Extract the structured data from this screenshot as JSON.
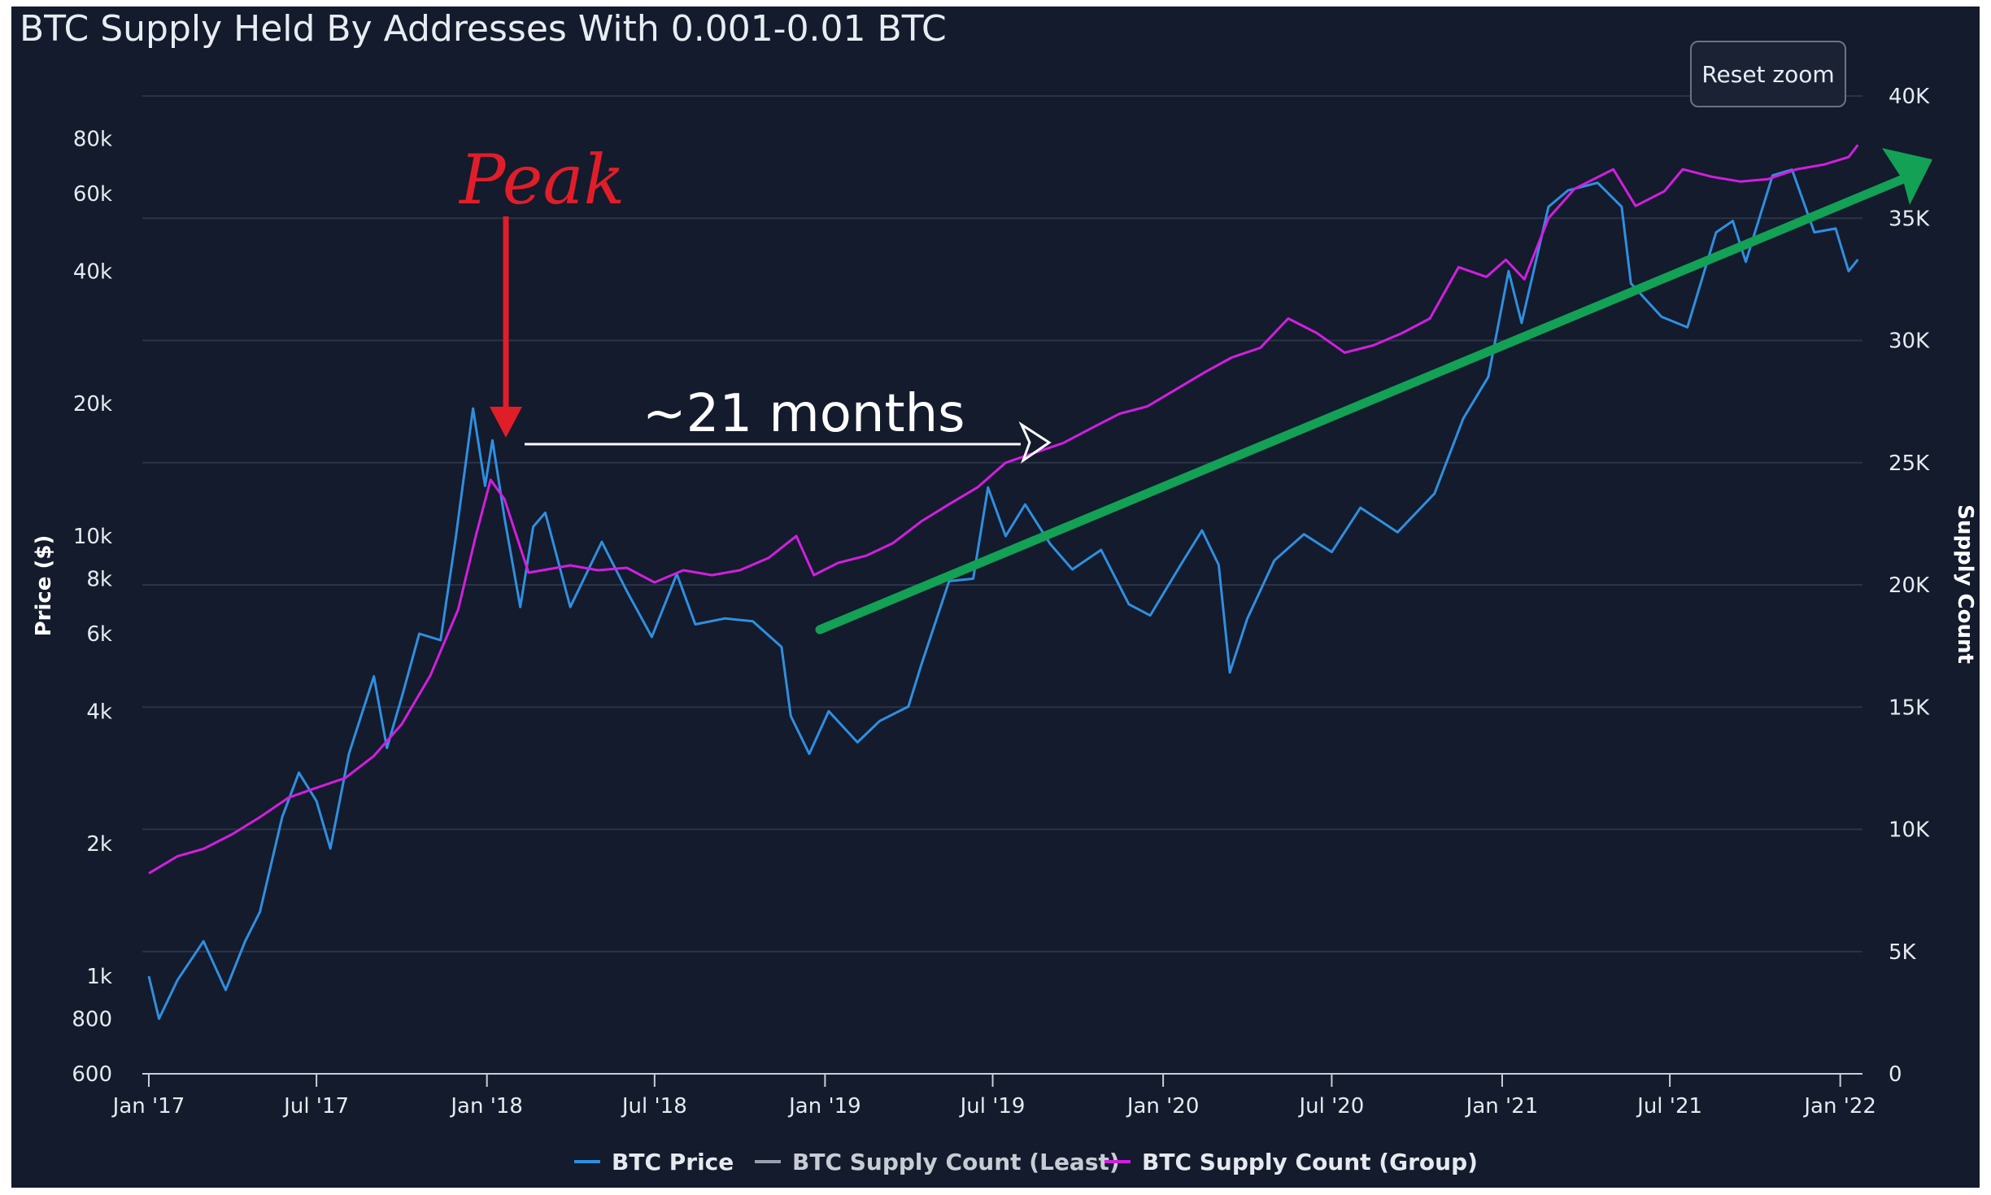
{
  "chart_data": {
    "type": "line",
    "title": "BTC Supply Held By Addresses With 0.001-0.01 BTC",
    "reset_zoom_label": "Reset zoom",
    "x_axis": {
      "type": "datetime",
      "range": [
        "2016-12-25",
        "2022-01-25"
      ],
      "tick_labels": [
        "Jan '17",
        "Jul '17",
        "Jan '18",
        "Jul '18",
        "Jan '19",
        "Jul '19",
        "Jan '20",
        "Jul '20",
        "Jan '21",
        "Jul '21",
        "Jan '22"
      ]
    },
    "y_left": {
      "label": "Price ($)",
      "scale": "log",
      "range": [
        600,
        100000
      ],
      "tick_labels": [
        "600",
        "800",
        "1k",
        "2k",
        "4k",
        "6k",
        "8k",
        "10k",
        "20k",
        "40k",
        "60k",
        "80k"
      ]
    },
    "y_right": {
      "label": "Supply Count",
      "scale": "linear",
      "range": [
        0,
        40000
      ],
      "tick_labels": [
        "0",
        "5K",
        "10K",
        "15K",
        "20K",
        "25K",
        "30K",
        "35K",
        "40K"
      ]
    },
    "grid": true,
    "legend": {
      "position": "bottom-center",
      "items": [
        {
          "name": "BTC Price",
          "color": "#2f8fe0",
          "active": true
        },
        {
          "name": "BTC Supply Count (Least)",
          "color": "#9aa0ab",
          "active": false
        },
        {
          "name": "BTC Supply Count (Group)",
          "color": "#d21ee0",
          "active": true
        }
      ]
    },
    "series": [
      {
        "name": "BTC Price",
        "axis": "left",
        "color": "#2f8fe0",
        "points": [
          [
            "2017-01-01",
            1000
          ],
          [
            "2017-01-12",
            800
          ],
          [
            "2017-02-01",
            980
          ],
          [
            "2017-03-01",
            1200
          ],
          [
            "2017-03-25",
            930
          ],
          [
            "2017-04-15",
            1200
          ],
          [
            "2017-05-01",
            1400
          ],
          [
            "2017-05-25",
            2300
          ],
          [
            "2017-06-12",
            2900
          ],
          [
            "2017-07-01",
            2500
          ],
          [
            "2017-07-16",
            1950
          ],
          [
            "2017-08-05",
            3200
          ],
          [
            "2017-09-01",
            4800
          ],
          [
            "2017-09-15",
            3300
          ],
          [
            "2017-10-01",
            4300
          ],
          [
            "2017-10-20",
            6000
          ],
          [
            "2017-11-12",
            5800
          ],
          [
            "2017-11-28",
            9800
          ],
          [
            "2017-12-17",
            19500
          ],
          [
            "2017-12-30",
            13000
          ],
          [
            "2018-01-07",
            16500
          ],
          [
            "2018-01-20",
            11000
          ],
          [
            "2018-02-06",
            6900
          ],
          [
            "2018-02-20",
            10500
          ],
          [
            "2018-03-05",
            11300
          ],
          [
            "2018-04-01",
            6900
          ],
          [
            "2018-05-05",
            9700
          ],
          [
            "2018-06-01",
            7500
          ],
          [
            "2018-06-28",
            5900
          ],
          [
            "2018-07-25",
            8200
          ],
          [
            "2018-08-14",
            6300
          ],
          [
            "2018-09-15",
            6500
          ],
          [
            "2018-10-15",
            6400
          ],
          [
            "2018-11-15",
            5600
          ],
          [
            "2018-11-25",
            3900
          ],
          [
            "2018-12-15",
            3200
          ],
          [
            "2019-01-05",
            4000
          ],
          [
            "2019-02-05",
            3400
          ],
          [
            "2019-03-01",
            3800
          ],
          [
            "2019-04-01",
            4100
          ],
          [
            "2019-04-15",
            5100
          ],
          [
            "2019-05-15",
            7900
          ],
          [
            "2019-06-10",
            8000
          ],
          [
            "2019-06-26",
            12900
          ],
          [
            "2019-07-15",
            10000
          ],
          [
            "2019-08-05",
            11800
          ],
          [
            "2019-09-01",
            9600
          ],
          [
            "2019-09-25",
            8400
          ],
          [
            "2019-10-26",
            9300
          ],
          [
            "2019-11-25",
            7000
          ],
          [
            "2019-12-18",
            6600
          ],
          [
            "2020-01-20",
            8600
          ],
          [
            "2020-02-12",
            10300
          ],
          [
            "2020-03-01",
            8600
          ],
          [
            "2020-03-13",
            4900
          ],
          [
            "2020-04-01",
            6500
          ],
          [
            "2020-04-30",
            8800
          ],
          [
            "2020-06-01",
            10100
          ],
          [
            "2020-07-01",
            9200
          ],
          [
            "2020-08-01",
            11600
          ],
          [
            "2020-09-10",
            10200
          ],
          [
            "2020-10-20",
            12500
          ],
          [
            "2020-11-20",
            18500
          ],
          [
            "2020-12-17",
            23000
          ],
          [
            "2021-01-08",
            40000
          ],
          [
            "2021-01-22",
            30500
          ],
          [
            "2021-02-20",
            56000
          ],
          [
            "2021-03-13",
            61000
          ],
          [
            "2021-04-14",
            63500
          ],
          [
            "2021-05-10",
            56000
          ],
          [
            "2021-05-20",
            37500
          ],
          [
            "2021-06-22",
            31500
          ],
          [
            "2021-07-20",
            29800
          ],
          [
            "2021-08-20",
            49000
          ],
          [
            "2021-09-07",
            52000
          ],
          [
            "2021-09-21",
            42000
          ],
          [
            "2021-10-20",
            66000
          ],
          [
            "2021-11-10",
            68000
          ],
          [
            "2021-12-04",
            49000
          ],
          [
            "2021-12-27",
            50000
          ],
          [
            "2022-01-10",
            40000
          ],
          [
            "2022-01-20",
            42500
          ]
        ]
      },
      {
        "name": "BTC Supply Count (Group)",
        "axis": "right",
        "color": "#d21ee0",
        "points": [
          [
            "2017-01-01",
            8200
          ],
          [
            "2017-02-01",
            8900
          ],
          [
            "2017-03-01",
            9200
          ],
          [
            "2017-04-01",
            9800
          ],
          [
            "2017-05-01",
            10500
          ],
          [
            "2017-06-01",
            11300
          ],
          [
            "2017-07-01",
            11700
          ],
          [
            "2017-08-01",
            12100
          ],
          [
            "2017-09-01",
            13000
          ],
          [
            "2017-10-01",
            14300
          ],
          [
            "2017-11-01",
            16300
          ],
          [
            "2017-12-01",
            19000
          ],
          [
            "2017-12-20",
            22000
          ],
          [
            "2018-01-05",
            24300
          ],
          [
            "2018-01-20",
            23500
          ],
          [
            "2018-02-15",
            20500
          ],
          [
            "2018-04-01",
            20800
          ],
          [
            "2018-05-01",
            20600
          ],
          [
            "2018-06-01",
            20700
          ],
          [
            "2018-07-01",
            20100
          ],
          [
            "2018-08-01",
            20600
          ],
          [
            "2018-09-01",
            20400
          ],
          [
            "2018-10-01",
            20600
          ],
          [
            "2018-11-01",
            21100
          ],
          [
            "2018-12-01",
            22000
          ],
          [
            "2018-12-20",
            20400
          ],
          [
            "2019-01-15",
            20900
          ],
          [
            "2019-02-15",
            21200
          ],
          [
            "2019-03-15",
            21700
          ],
          [
            "2019-04-15",
            22600
          ],
          [
            "2019-05-15",
            23300
          ],
          [
            "2019-06-15",
            24000
          ],
          [
            "2019-07-15",
            25000
          ],
          [
            "2019-08-15",
            25400
          ],
          [
            "2019-09-15",
            25800
          ],
          [
            "2019-10-15",
            26400
          ],
          [
            "2019-11-15",
            27000
          ],
          [
            "2019-12-15",
            27300
          ],
          [
            "2020-01-15",
            28000
          ],
          [
            "2020-02-15",
            28700
          ],
          [
            "2020-03-15",
            29300
          ],
          [
            "2020-04-15",
            29700
          ],
          [
            "2020-05-15",
            30900
          ],
          [
            "2020-06-15",
            30300
          ],
          [
            "2020-07-15",
            29500
          ],
          [
            "2020-08-15",
            29800
          ],
          [
            "2020-09-15",
            30300
          ],
          [
            "2020-10-15",
            30900
          ],
          [
            "2020-11-15",
            33000
          ],
          [
            "2020-12-15",
            32600
          ],
          [
            "2021-01-05",
            33300
          ],
          [
            "2021-01-25",
            32500
          ],
          [
            "2021-02-20",
            35000
          ],
          [
            "2021-03-20",
            36200
          ],
          [
            "2021-05-01",
            37000
          ],
          [
            "2021-05-25",
            35500
          ],
          [
            "2021-06-25",
            36100
          ],
          [
            "2021-07-15",
            37000
          ],
          [
            "2021-08-15",
            36700
          ],
          [
            "2021-09-15",
            36500
          ],
          [
            "2021-10-15",
            36600
          ],
          [
            "2021-11-15",
            37000
          ],
          [
            "2021-12-15",
            37200
          ],
          [
            "2022-01-10",
            37500
          ],
          [
            "2022-01-20",
            38000
          ]
        ]
      }
    ],
    "annotations": [
      {
        "text": "Peak",
        "color": "#e11d2a"
      },
      {
        "text": "~21 months",
        "color": "#ffffff"
      }
    ]
  }
}
